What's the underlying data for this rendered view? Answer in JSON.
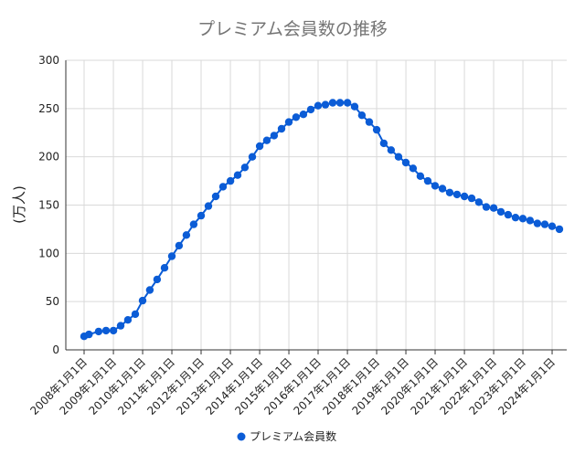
{
  "chart_data": {
    "type": "line",
    "title": "プレミアム会員数の推移",
    "ylabel": "(万人)",
    "xlabel": "",
    "ylim": [
      0,
      300
    ],
    "yticks": [
      0,
      50,
      100,
      150,
      200,
      250,
      300
    ],
    "grid": true,
    "legend": "bottom",
    "x_range": [
      "2008-01-01",
      "2024-04-01"
    ],
    "x_tick_labels": [
      "2008年1月1日",
      "2009年1月1日",
      "2010年1月1日",
      "2011年1月1日",
      "2012年1月1日",
      "2013年1月1日",
      "2014年1月1日",
      "2015年1月1日",
      "2016年1月1日",
      "2017年1月1日",
      "2018年1月1日",
      "2019年1月1日",
      "2020年1月1日",
      "2021年1月1日",
      "2022年1月1日",
      "2023年1月1日",
      "2024年1月1日"
    ],
    "series": [
      {
        "name": "プレミアム会員数",
        "color": "#0b5cd6",
        "points": [
          [
            "2008-01-01",
            14
          ],
          [
            "2008-03-01",
            16
          ],
          [
            "2008-07-01",
            19
          ],
          [
            "2008-10-01",
            20
          ],
          [
            "2009-01-01",
            20
          ],
          [
            "2009-04-01",
            25
          ],
          [
            "2009-07-01",
            31
          ],
          [
            "2009-10-01",
            37
          ],
          [
            "2010-01-01",
            51
          ],
          [
            "2010-04-01",
            62
          ],
          [
            "2010-07-01",
            73
          ],
          [
            "2010-10-01",
            85
          ],
          [
            "2011-01-01",
            97
          ],
          [
            "2011-04-01",
            108
          ],
          [
            "2011-07-01",
            119
          ],
          [
            "2011-10-01",
            130
          ],
          [
            "2012-01-01",
            139
          ],
          [
            "2012-04-01",
            149
          ],
          [
            "2012-07-01",
            159
          ],
          [
            "2012-10-01",
            169
          ],
          [
            "2013-01-01",
            175
          ],
          [
            "2013-04-01",
            181
          ],
          [
            "2013-07-01",
            189
          ],
          [
            "2013-10-01",
            200
          ],
          [
            "2014-01-01",
            211
          ],
          [
            "2014-04-01",
            217
          ],
          [
            "2014-07-01",
            222
          ],
          [
            "2014-10-01",
            229
          ],
          [
            "2015-01-01",
            236
          ],
          [
            "2015-04-01",
            241
          ],
          [
            "2015-07-01",
            244
          ],
          [
            "2015-10-01",
            249
          ],
          [
            "2016-01-01",
            253
          ],
          [
            "2016-04-01",
            254
          ],
          [
            "2016-07-01",
            256
          ],
          [
            "2016-10-01",
            256
          ],
          [
            "2017-01-01",
            256
          ],
          [
            "2017-04-01",
            252
          ],
          [
            "2017-07-01",
            243
          ],
          [
            "2017-10-01",
            236
          ],
          [
            "2018-01-01",
            228
          ],
          [
            "2018-04-01",
            214
          ],
          [
            "2018-07-01",
            207
          ],
          [
            "2018-10-01",
            200
          ],
          [
            "2019-01-01",
            194
          ],
          [
            "2019-04-01",
            188
          ],
          [
            "2019-07-01",
            180
          ],
          [
            "2019-10-01",
            175
          ],
          [
            "2020-01-01",
            170
          ],
          [
            "2020-04-01",
            167
          ],
          [
            "2020-07-01",
            163
          ],
          [
            "2020-10-01",
            161
          ],
          [
            "2021-01-01",
            159
          ],
          [
            "2021-04-01",
            157
          ],
          [
            "2021-07-01",
            153
          ],
          [
            "2021-10-01",
            148
          ],
          [
            "2022-01-01",
            147
          ],
          [
            "2022-04-01",
            143
          ],
          [
            "2022-07-01",
            140
          ],
          [
            "2022-10-01",
            137
          ],
          [
            "2023-01-01",
            136
          ],
          [
            "2023-04-01",
            134
          ],
          [
            "2023-07-01",
            131
          ],
          [
            "2023-10-01",
            130
          ],
          [
            "2024-01-01",
            128
          ],
          [
            "2024-04-01",
            125
          ]
        ]
      }
    ]
  }
}
